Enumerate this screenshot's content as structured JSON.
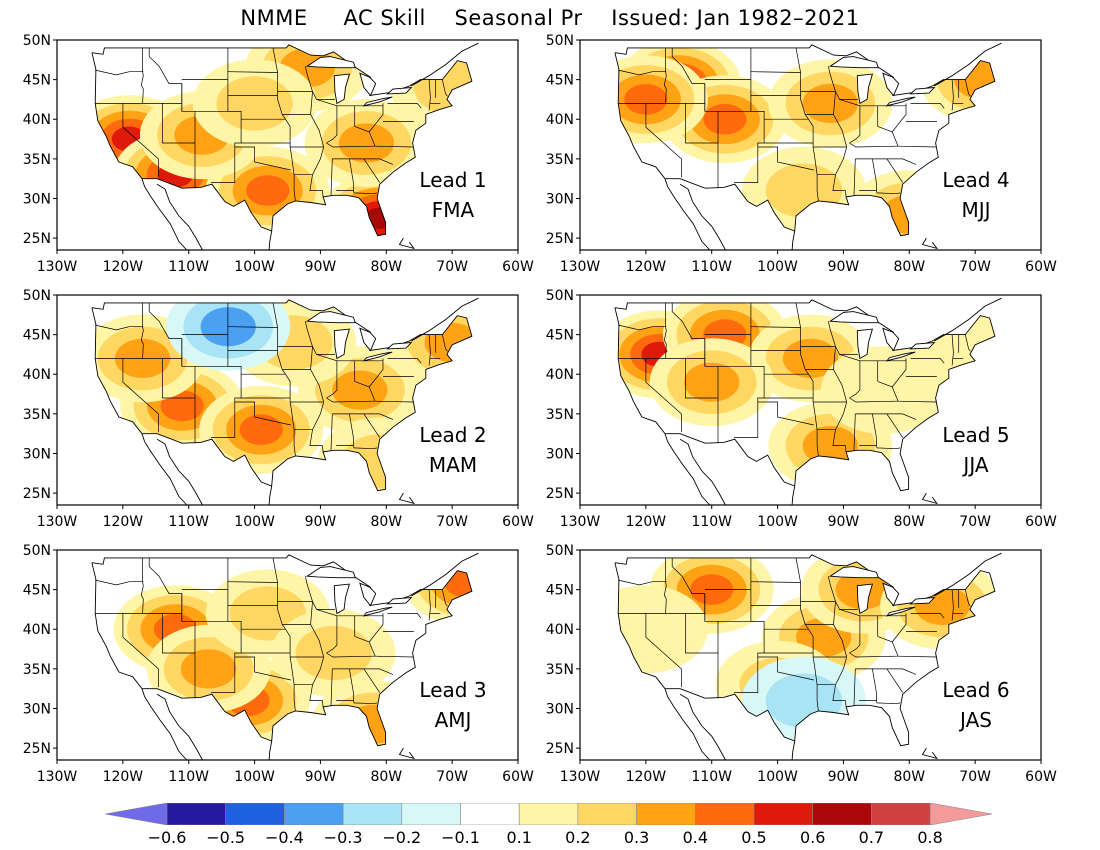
{
  "title": "NMME     AC Skill    Seasonal Pr    Issued: Jan 1982–2021",
  "map_axes": {
    "lat_labels": [
      "50N",
      "45N",
      "40N",
      "35N",
      "30N",
      "25N"
    ],
    "lon_labels": [
      "130W",
      "120W",
      "110W",
      "100W",
      "90W",
      "80W",
      "70W",
      "60W"
    ]
  },
  "panels": [
    {
      "lead": "Lead 1",
      "season": "FMA",
      "hotspots": [
        {
          "lon": -119,
          "lat": 37.5,
          "skill": 0.5
        },
        {
          "lon": -112,
          "lat": 33,
          "skill": 0.55
        },
        {
          "lon": -81,
          "lat": 27.5,
          "skill": 0.6
        },
        {
          "lon": -98,
          "lat": 31,
          "skill": 0.4
        },
        {
          "lon": -83,
          "lat": 37,
          "skill": 0.35
        },
        {
          "lon": -108,
          "lat": 38,
          "skill": 0.3
        },
        {
          "lon": -92,
          "lat": 46.5,
          "skill": 0.3
        },
        {
          "lon": -70,
          "lat": 44,
          "skill": 0.25
        },
        {
          "lon": -100,
          "lat": 42,
          "skill": 0.2
        }
      ]
    },
    {
      "lead": "Lead 4",
      "season": "MJJ",
      "hotspots": [
        {
          "lon": -115,
          "lat": 44.5,
          "skill": 0.5
        },
        {
          "lon": -108,
          "lat": 40,
          "skill": 0.45
        },
        {
          "lon": -92,
          "lat": 42,
          "skill": 0.35
        },
        {
          "lon": -120,
          "lat": 42.5,
          "skill": 0.4
        },
        {
          "lon": -80,
          "lat": 28,
          "skill": 0.3
        },
        {
          "lon": -69,
          "lat": 45,
          "skill": 0.35
        },
        {
          "lon": -96,
          "lat": 31,
          "skill": 0.2
        }
      ]
    },
    {
      "lead": "Lead 2",
      "season": "MAM",
      "hotspots": [
        {
          "lon": -111,
          "lat": 36,
          "skill": 0.45
        },
        {
          "lon": -117,
          "lat": 42,
          "skill": 0.35
        },
        {
          "lon": -99,
          "lat": 33,
          "skill": 0.4
        },
        {
          "lon": -84,
          "lat": 38,
          "skill": 0.35
        },
        {
          "lon": -70,
          "lat": 44,
          "skill": 0.3
        },
        {
          "lon": -81,
          "lat": 29,
          "skill": 0.25
        },
        {
          "lon": -94,
          "lat": 44,
          "skill": 0.2
        },
        {
          "lon": -104,
          "lat": 46,
          "skill": -0.3
        }
      ]
    },
    {
      "lead": "Lead 5",
      "season": "JJA",
      "hotspots": [
        {
          "lon": -118,
          "lat": 42.5,
          "skill": 0.5
        },
        {
          "lon": -108,
          "lat": 45,
          "skill": 0.45
        },
        {
          "lon": -95,
          "lat": 42,
          "skill": 0.35
        },
        {
          "lon": -92,
          "lat": 31,
          "skill": 0.35
        },
        {
          "lon": -110,
          "lat": 39,
          "skill": 0.3
        },
        {
          "lon": -84,
          "lat": 38,
          "skill": 0.15
        },
        {
          "lon": -72,
          "lat": 43,
          "skill": 0.15
        }
      ]
    },
    {
      "lead": "Lead 3",
      "season": "AMJ",
      "hotspots": [
        {
          "lon": -112,
          "lat": 40,
          "skill": 0.4
        },
        {
          "lon": -101,
          "lat": 31,
          "skill": 0.45
        },
        {
          "lon": -107,
          "lat": 35,
          "skill": 0.35
        },
        {
          "lon": -98,
          "lat": 42,
          "skill": 0.25
        },
        {
          "lon": -68,
          "lat": 46,
          "skill": 0.4
        },
        {
          "lon": -82,
          "lat": 28,
          "skill": 0.35
        },
        {
          "lon": -88,
          "lat": 37,
          "skill": 0.2
        }
      ]
    },
    {
      "lead": "Lead 6",
      "season": "JAS",
      "hotspots": [
        {
          "lon": -110,
          "lat": 45,
          "skill": 0.4
        },
        {
          "lon": -93,
          "lat": 39,
          "skill": 0.35
        },
        {
          "lon": -87,
          "lat": 45,
          "skill": 0.3
        },
        {
          "lon": -75,
          "lat": 43,
          "skill": 0.3
        },
        {
          "lon": -98,
          "lat": 27,
          "skill": 0.3
        },
        {
          "lon": -100,
          "lat": 33,
          "skill": 0.2
        },
        {
          "lon": -96,
          "lat": 31,
          "skill": -0.2
        },
        {
          "lon": -120,
          "lat": 40,
          "skill": 0.15
        }
      ]
    }
  ],
  "colorbar": {
    "labels": [
      "−0.6",
      "−0.5",
      "−0.4",
      "−0.3",
      "−0.2",
      "−0.1",
      "0.1",
      "0.2",
      "0.3",
      "0.4",
      "0.5",
      "0.6",
      "0.7",
      "0.8"
    ],
    "colors": [
      "#241a9e",
      "#1e61e0",
      "#4ca0f2",
      "#a8e4f5",
      "#d8f8f7",
      "#ffffff",
      "#fff5a6",
      "#ffd762",
      "#ffa214",
      "#ff6a0e",
      "#e01a0a",
      "#a80808",
      "#cf4040"
    ],
    "under_color": "#6e6ae8",
    "over_color": "#f59a9a"
  }
}
